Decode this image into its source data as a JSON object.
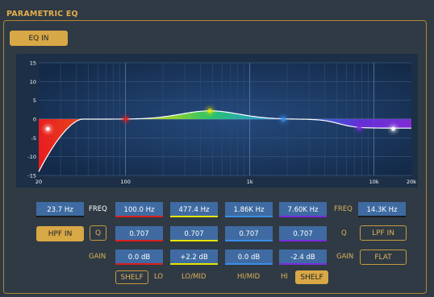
{
  "title": "PARAMETRIC EQ",
  "eq_in_label": "EQ IN",
  "graph": {
    "y_ticks": [
      "15",
      "10",
      "5",
      "0",
      "-5",
      "-10",
      "-15"
    ],
    "x_ticks": [
      "20",
      "100",
      "1k",
      "10k",
      "20k"
    ],
    "band_colors": [
      "#ff2020",
      "#dd1d1d",
      "#e6e600",
      "#3a8ee6",
      "#7a2be0"
    ]
  },
  "hpf": {
    "freq": "23.7 Hz",
    "button": "HPF IN"
  },
  "labels": {
    "freq": "FREQ",
    "q": "Q",
    "gain": "GAIN",
    "lo": "LO",
    "lo_mid": "LO/MID",
    "hi_mid": "HI/MID",
    "hi": "HI"
  },
  "bands": [
    {
      "freq": "100.0 Hz",
      "q": "0.707",
      "gain": "0.0 dB",
      "color": "#dd1d1d"
    },
    {
      "freq": "477.4 Hz",
      "q": "0.707",
      "gain": "+2.2 dB",
      "color": "#e6e600"
    },
    {
      "freq": "1.86K Hz",
      "q": "0.707",
      "gain": "0.0 dB",
      "color": "#3a8ee6"
    },
    {
      "freq": "7.60K Hz",
      "q": "0.707",
      "gain": "-2.4 dB",
      "color": "#7a2be0"
    }
  ],
  "q_button": "Q",
  "lo_shelf": "SHELF",
  "hi_shelf": "SHELF",
  "lpf": {
    "freq": "14.3K Hz",
    "button": "LPF IN",
    "flat": "FLAT"
  }
}
